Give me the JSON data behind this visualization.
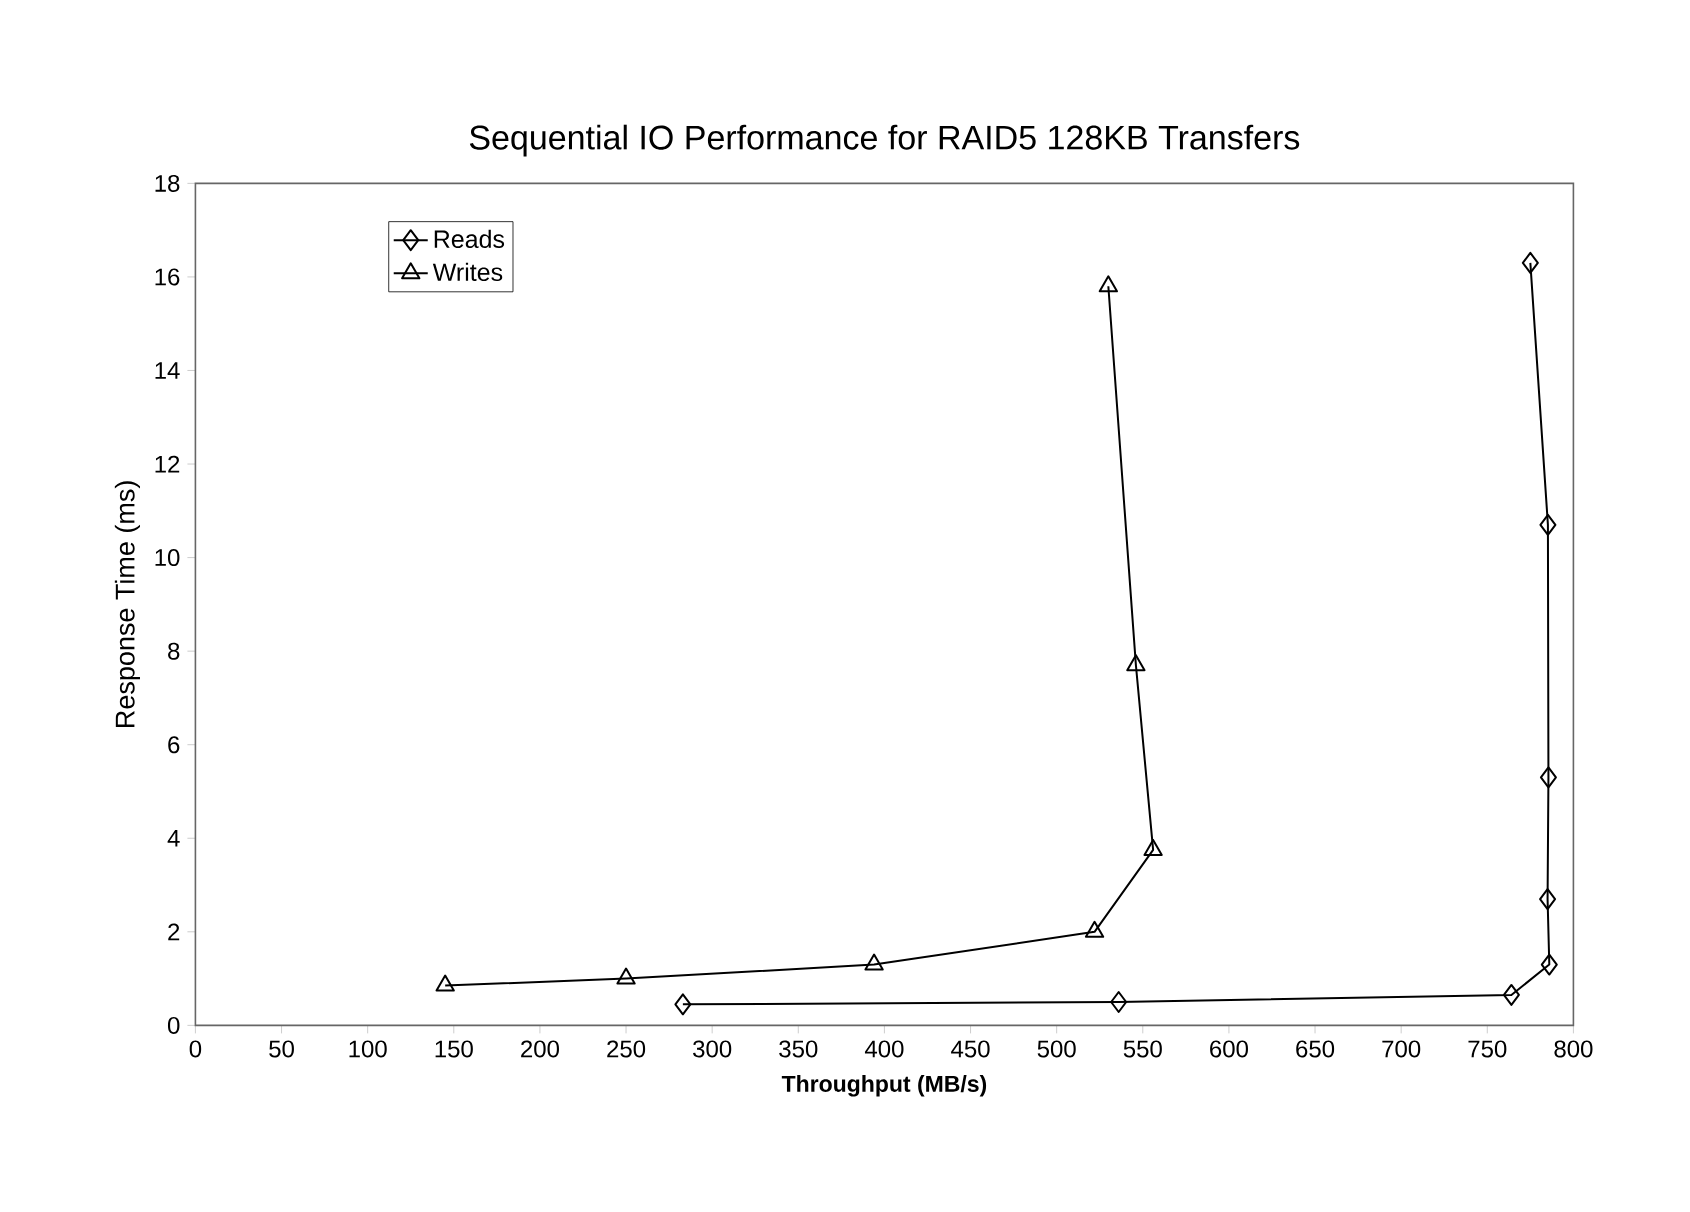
{
  "chart_data": {
    "type": "line",
    "title": "Sequential IO Performance for RAID5 128KB Transfers",
    "xlabel": "Throughput (MB/s)",
    "ylabel": "Response Time (ms)",
    "xlim": [
      0,
      800
    ],
    "xticks": [
      0,
      50,
      100,
      150,
      200,
      250,
      300,
      350,
      400,
      450,
      500,
      550,
      600,
      650,
      700,
      750,
      800
    ],
    "ylim": [
      0,
      18
    ],
    "yticks": [
      0,
      2,
      4,
      6,
      8,
      10,
      12,
      14,
      16,
      18
    ],
    "grid": false,
    "legend": "top left",
    "series": [
      {
        "name": "Reads",
        "color": "#000000",
        "marker": "diamond",
        "x": [
          283,
          536,
          764,
          786,
          785,
          785.5,
          785.2,
          775
        ],
        "values": [
          0.45,
          0.5,
          0.65,
          1.3,
          2.7,
          5.3,
          10.7,
          16.3
        ]
      },
      {
        "name": "Writes",
        "color": "#000000",
        "marker": "triangle",
        "x": [
          145,
          250,
          394,
          522,
          556,
          546,
          530
        ],
        "values": [
          0.85,
          1.0,
          1.3,
          2.0,
          3.75,
          7.7,
          15.8
        ]
      }
    ]
  }
}
